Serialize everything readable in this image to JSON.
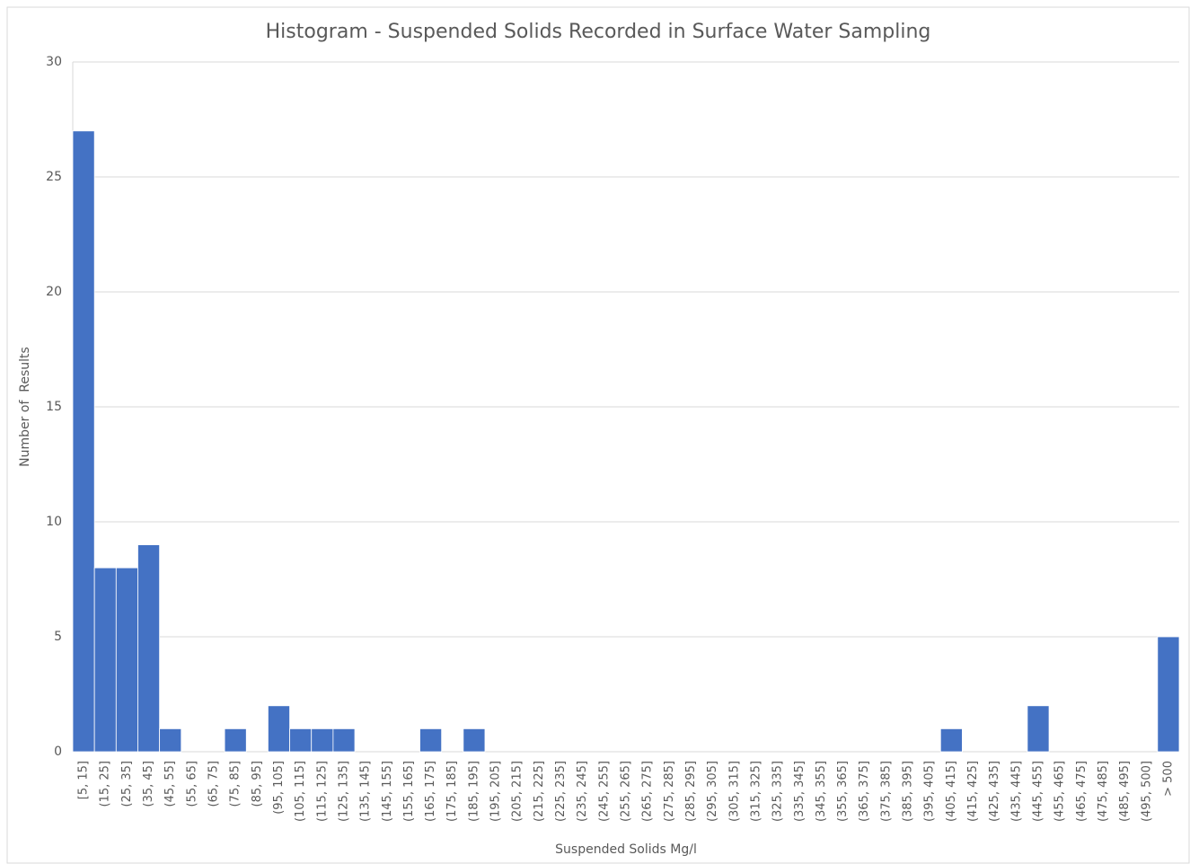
{
  "chart_data": {
    "type": "bar",
    "title": "Histogram - Suspended Solids Recorded in Surface Water Sampling",
    "x_label": "Suspended Solids Mg/l",
    "y_label": "Number of  Results",
    "categories": [
      "[5, 15]",
      "(15, 25]",
      "(25, 35]",
      "(35, 45]",
      "(45, 55]",
      "(55, 65]",
      "(65, 75]",
      "(75, 85]",
      "(85, 95]",
      "(95, 105]",
      "(105, 115]",
      "(115, 125]",
      "(125, 135]",
      "(135, 145]",
      "(145, 155]",
      "(155, 165]",
      "(165, 175]",
      "(175, 185]",
      "(185, 195]",
      "(195, 205]",
      "(205, 215]",
      "(215, 225]",
      "(225, 235]",
      "(235, 245]",
      "(245, 255]",
      "(255, 265]",
      "(265, 275]",
      "(275, 285]",
      "(285, 295]",
      "(295, 305]",
      "(305, 315]",
      "(315, 325]",
      "(325, 335]",
      "(335, 345]",
      "(345, 355]",
      "(355, 365]",
      "(365, 375]",
      "(375, 385]",
      "(385, 395]",
      "(395, 405]",
      "(405, 415]",
      "(415, 425]",
      "(425, 435]",
      "(435, 445]",
      "(445, 455]",
      "(455, 465]",
      "(465, 475]",
      "(475, 485]",
      "(485, 495]",
      "(495, 500]",
      "> 500"
    ],
    "values": [
      27,
      8,
      8,
      9,
      1,
      0,
      0,
      1,
      0,
      2,
      1,
      1,
      1,
      0,
      0,
      0,
      1,
      0,
      1,
      0,
      0,
      0,
      0,
      0,
      0,
      0,
      0,
      0,
      0,
      0,
      0,
      0,
      0,
      0,
      0,
      0,
      0,
      0,
      0,
      0,
      1,
      0,
      0,
      0,
      2,
      0,
      0,
      0,
      0,
      0,
      5
    ],
    "color": "#4472c4",
    "ylim": [
      0,
      30
    ],
    "yticks": [
      0,
      5,
      10,
      15,
      20,
      25,
      30
    ],
    "grid": true
  }
}
